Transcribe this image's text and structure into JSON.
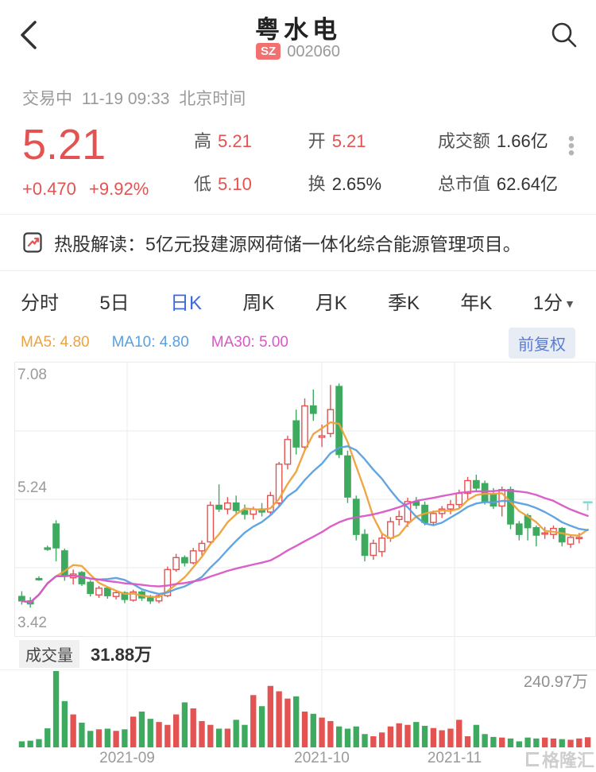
{
  "header": {
    "title": "粤水电",
    "exchange_badge": "SZ",
    "stock_code": "002060"
  },
  "status_bar": {
    "trading_status": "交易中",
    "datetime": "11-19 09:33",
    "timezone": "北京时间"
  },
  "quote": {
    "price": "5.21",
    "change": "+0.470",
    "change_pct": "+9.92%",
    "stats": [
      {
        "label": "高",
        "value": "5.21",
        "color": "red"
      },
      {
        "label": "低",
        "value": "5.10",
        "color": "red"
      },
      {
        "label": "开",
        "value": "5.21",
        "color": "red"
      },
      {
        "label": "换",
        "value": "2.65%",
        "color": "dark"
      },
      {
        "label": "成交额",
        "value": "1.66亿",
        "color": "dark"
      },
      {
        "label": "总市值",
        "value": "62.64亿",
        "color": "dark"
      }
    ]
  },
  "news": {
    "icon": "hot-stock-article-icon",
    "text": "热股解读：5亿元投建源网荷储一体化综合能源管理项目。"
  },
  "tabs": {
    "items": [
      "分时",
      "5日",
      "日K",
      "周K",
      "月K",
      "季K",
      "年K"
    ],
    "active": "日K",
    "interval_selector": "1分"
  },
  "indicators": {
    "ma5": "MA5: 4.80",
    "ma10": "MA10: 4.80",
    "ma30": "MA30: 5.00",
    "adjust_button": "前复权"
  },
  "volume_pane": {
    "label": "成交量",
    "current": "31.88万",
    "max": "240.97万"
  },
  "watermark": "格隆汇",
  "colors": {
    "up_red": "#e25352",
    "down_green": "#3eaa5f",
    "ma5_orange": "#eda23c",
    "ma10_blue": "#58a0e0",
    "ma30_magenta": "#d957c5",
    "current_teal": "#86d7d8",
    "active_tab_blue": "#3c6bdb",
    "badge_red": "#f07170",
    "grid_gray": "#ebebeb"
  },
  "chart_data": {
    "type": "candlestick_with_volume",
    "title": "粤水电 日K 前复权",
    "ylim": [
      3.42,
      7.08
    ],
    "y_axis_labels": [
      "7.08",
      "5.24",
      "3.42"
    ],
    "x_axis_labels": [
      "2021-09",
      "2021-10",
      "2021-11"
    ],
    "x_label_positions": [
      160,
      405,
      572
    ],
    "ma_periods": [
      5,
      10,
      30
    ],
    "legend": [
      "MA5",
      "MA10",
      "MA30"
    ],
    "candles_ohlc": [
      [
        3.95,
        4.02,
        3.84,
        3.89
      ],
      [
        3.89,
        3.94,
        3.8,
        3.85
      ],
      [
        4.19,
        4.22,
        4.16,
        4.18
      ],
      [
        4.6,
        4.63,
        4.56,
        4.58
      ],
      [
        4.92,
        4.97,
        4.42,
        4.6
      ],
      [
        4.56,
        4.59,
        4.16,
        4.24
      ],
      [
        4.2,
        4.31,
        4.11,
        4.25
      ],
      [
        4.27,
        4.29,
        4.09,
        4.12
      ],
      [
        4.14,
        4.17,
        3.95,
        3.99
      ],
      [
        3.97,
        4.09,
        3.93,
        4.06
      ],
      [
        4.06,
        4.08,
        3.92,
        3.96
      ],
      [
        3.95,
        4.02,
        3.91,
        4.0
      ],
      [
        4.0,
        4.02,
        3.86,
        3.91
      ],
      [
        3.9,
        4.04,
        3.88,
        4.01
      ],
      [
        4.01,
        4.03,
        3.89,
        3.93
      ],
      [
        3.93,
        3.97,
        3.85,
        3.89
      ],
      [
        3.89,
        3.99,
        3.86,
        3.96
      ],
      [
        3.96,
        4.35,
        3.94,
        4.31
      ],
      [
        4.31,
        4.52,
        4.28,
        4.47
      ],
      [
        4.47,
        4.5,
        4.35,
        4.4
      ],
      [
        4.4,
        4.6,
        4.38,
        4.56
      ],
      [
        4.56,
        4.7,
        4.5,
        4.66
      ],
      [
        4.68,
        5.22,
        4.65,
        5.17
      ],
      [
        5.17,
        5.45,
        5.08,
        5.12
      ],
      [
        5.12,
        5.28,
        5.05,
        5.2
      ],
      [
        5.2,
        5.3,
        5.05,
        5.1
      ],
      [
        5.1,
        5.18,
        4.98,
        5.05
      ],
      [
        5.05,
        5.15,
        4.98,
        5.12
      ],
      [
        5.12,
        5.2,
        5.02,
        5.08
      ],
      [
        5.08,
        5.35,
        5.05,
        5.3
      ],
      [
        5.2,
        5.75,
        5.15,
        5.72
      ],
      [
        5.72,
        6.1,
        5.65,
        6.05
      ],
      [
        6.3,
        6.45,
        5.85,
        5.95
      ],
      [
        5.95,
        6.6,
        5.9,
        6.5
      ],
      [
        6.5,
        6.72,
        6.3,
        6.4
      ],
      [
        6.08,
        6.25,
        5.95,
        6.1
      ],
      [
        6.13,
        6.78,
        6.08,
        6.45
      ],
      [
        6.76,
        6.8,
        5.8,
        5.85
      ],
      [
        5.83,
        5.9,
        5.2,
        5.28
      ],
      [
        5.25,
        5.3,
        4.7,
        4.78
      ],
      [
        4.78,
        4.85,
        4.42,
        4.5
      ],
      [
        4.5,
        4.71,
        4.44,
        4.66
      ],
      [
        4.55,
        4.78,
        4.48,
        4.73
      ],
      [
        4.73,
        5.01,
        4.68,
        4.95
      ],
      [
        4.98,
        5.1,
        4.9,
        5.02
      ],
      [
        4.95,
        5.27,
        4.88,
        5.22
      ],
      [
        5.22,
        5.28,
        5.12,
        5.17
      ],
      [
        5.17,
        5.22,
        4.9,
        4.94
      ],
      [
        4.94,
        5.1,
        4.9,
        5.06
      ],
      [
        5.06,
        5.16,
        5.0,
        5.12
      ],
      [
        5.12,
        5.24,
        5.05,
        5.18
      ],
      [
        5.18,
        5.38,
        5.12,
        5.33
      ],
      [
        5.33,
        5.55,
        5.25,
        5.5
      ],
      [
        5.5,
        5.58,
        5.35,
        5.4
      ],
      [
        5.46,
        5.5,
        5.18,
        5.22
      ],
      [
        5.32,
        5.4,
        5.12,
        5.16
      ],
      [
        5.16,
        5.42,
        5.02,
        5.38
      ],
      [
        5.38,
        5.42,
        4.85,
        4.92
      ],
      [
        4.92,
        4.96,
        4.7,
        4.78
      ],
      [
        5.03,
        5.06,
        4.7,
        4.87
      ],
      [
        4.87,
        4.9,
        4.62,
        4.77
      ],
      [
        4.8,
        4.88,
        4.72,
        4.8
      ],
      [
        4.78,
        4.9,
        4.72,
        4.86
      ],
      [
        4.86,
        4.88,
        4.62,
        4.68
      ],
      [
        4.65,
        4.78,
        4.6,
        4.74
      ],
      [
        4.74,
        4.8,
        4.66,
        4.74
      ]
    ],
    "volumes_wan": [
      19,
      21,
      26,
      60,
      241,
      146,
      104,
      78,
      52,
      57,
      59,
      52,
      57,
      97,
      113,
      90,
      80,
      71,
      104,
      142,
      123,
      83,
      71,
      59,
      59,
      87,
      71,
      165,
      130,
      194,
      177,
      154,
      161,
      113,
      106,
      94,
      83,
      66,
      59,
      66,
      42,
      35,
      47,
      66,
      76,
      71,
      80,
      68,
      61,
      54,
      59,
      87,
      35,
      71,
      42,
      33,
      31,
      28,
      19,
      31,
      28,
      31,
      28,
      26,
      24,
      28
    ],
    "current_bar": {
      "open": 5.21,
      "high": 5.21,
      "low": 5.1,
      "close": 5.21,
      "volume_wan": 31.88
    }
  }
}
